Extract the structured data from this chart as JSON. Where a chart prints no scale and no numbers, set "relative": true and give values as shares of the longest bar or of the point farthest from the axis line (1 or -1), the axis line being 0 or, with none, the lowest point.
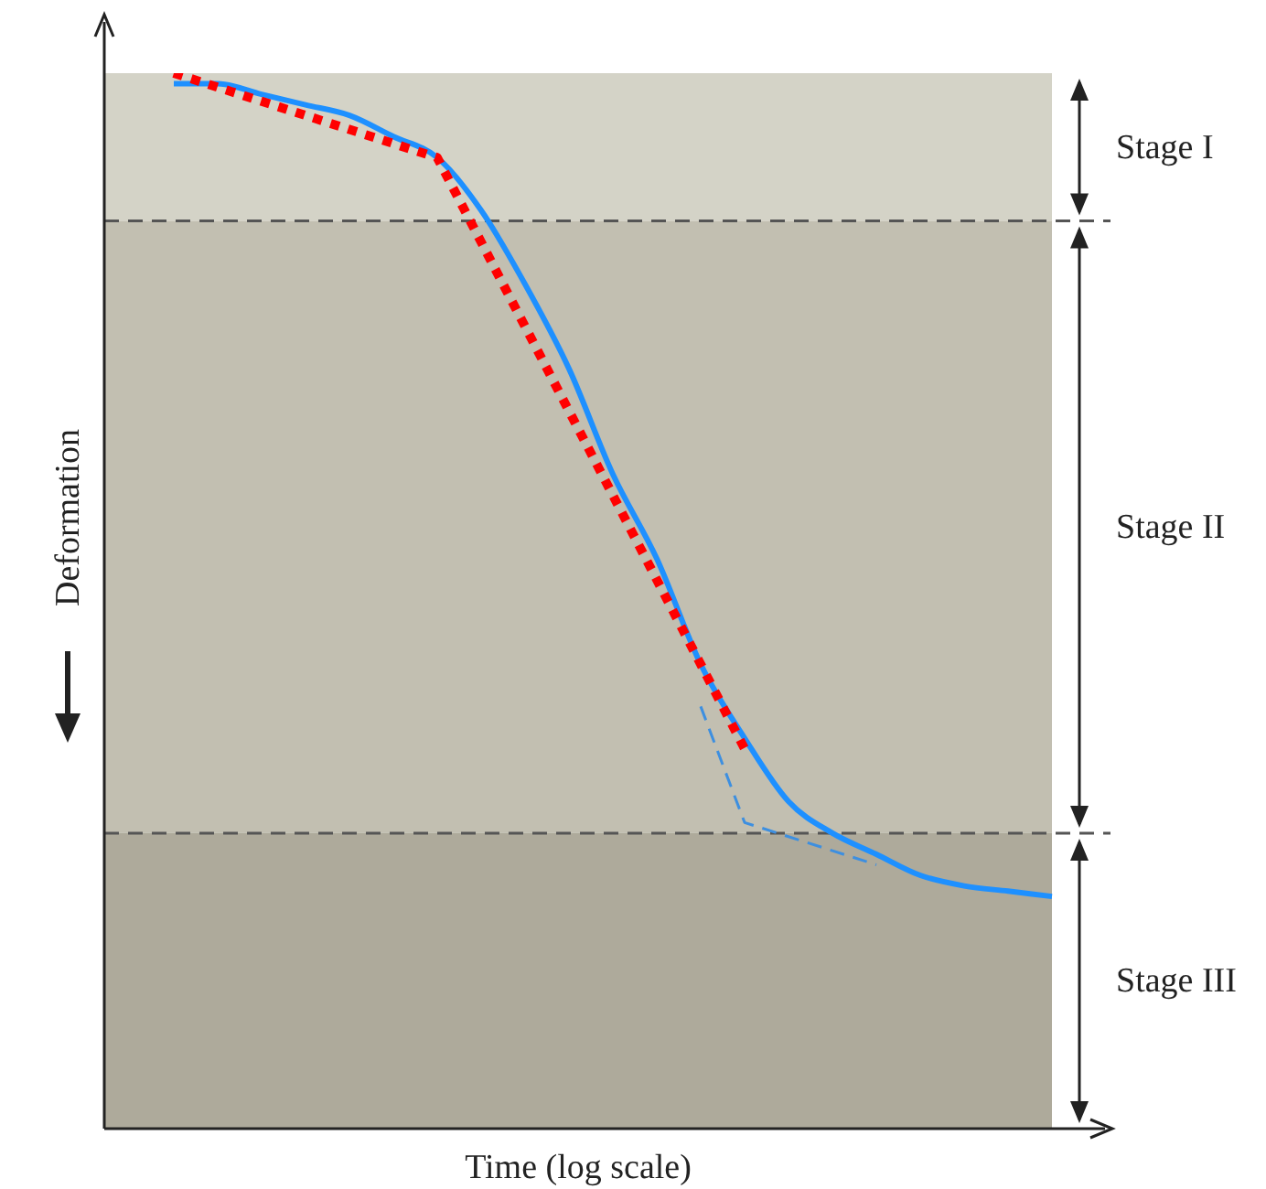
{
  "chart_data": {
    "type": "line",
    "relative": true,
    "xlabel": "Time (log scale)",
    "ylabel": "Deformation",
    "marker": "none",
    "categories": [
      null,
      null,
      null,
      null,
      null,
      null,
      null,
      null,
      null,
      null,
      null,
      null,
      null,
      null,
      null,
      null,
      null,
      null,
      null,
      null,
      null
    ],
    "series": [
      {
        "color": "#1e90ff",
        "line_style": "solid",
        "values": [
          0.99,
          0.99,
          0.98,
          0.97,
          0.96,
          0.94,
          0.92,
          0.87,
          0.8,
          0.72,
          0.62,
          0.54,
          0.44,
          0.37,
          0.31,
          0.28,
          0.26,
          0.24,
          0.23,
          0.225,
          0.22
        ]
      },
      {
        "color": "#ff0000",
        "line_style": "dotted",
        "values": [
          1.0,
          null,
          null,
          null,
          null,
          null,
          0.92,
          null,
          null,
          null,
          null,
          null,
          null,
          0.36,
          null,
          null,
          null,
          null,
          null,
          null,
          null
        ]
      },
      {
        "color": "#3d8fe0",
        "line_style": "dashed",
        "values": [
          null,
          null,
          null,
          null,
          null,
          null,
          null,
          null,
          null,
          null,
          null,
          null,
          0.4,
          0.29,
          null,
          null,
          0.25,
          null,
          null,
          null,
          null
        ]
      }
    ],
    "bands": [
      {
        "axis": "y",
        "from": 0.86,
        "to": 1.0,
        "label": "Stage I",
        "color": "#d4d3c7"
      },
      {
        "axis": "y",
        "from": 0.28,
        "to": 0.86,
        "label": "Stage II",
        "color": "#c2bfb1"
      },
      {
        "axis": "y",
        "from": 0,
        "to": 0.28,
        "label": "Stage III",
        "color": "#aeaa9b"
      }
    ],
    "ref_lines": [
      {
        "axis": "y",
        "value": 0.86,
        "color": "#555555",
        "line_style": "dashed"
      },
      {
        "axis": "y",
        "value": 0.28,
        "color": "#555555",
        "line_style": "dashed"
      }
    ]
  }
}
